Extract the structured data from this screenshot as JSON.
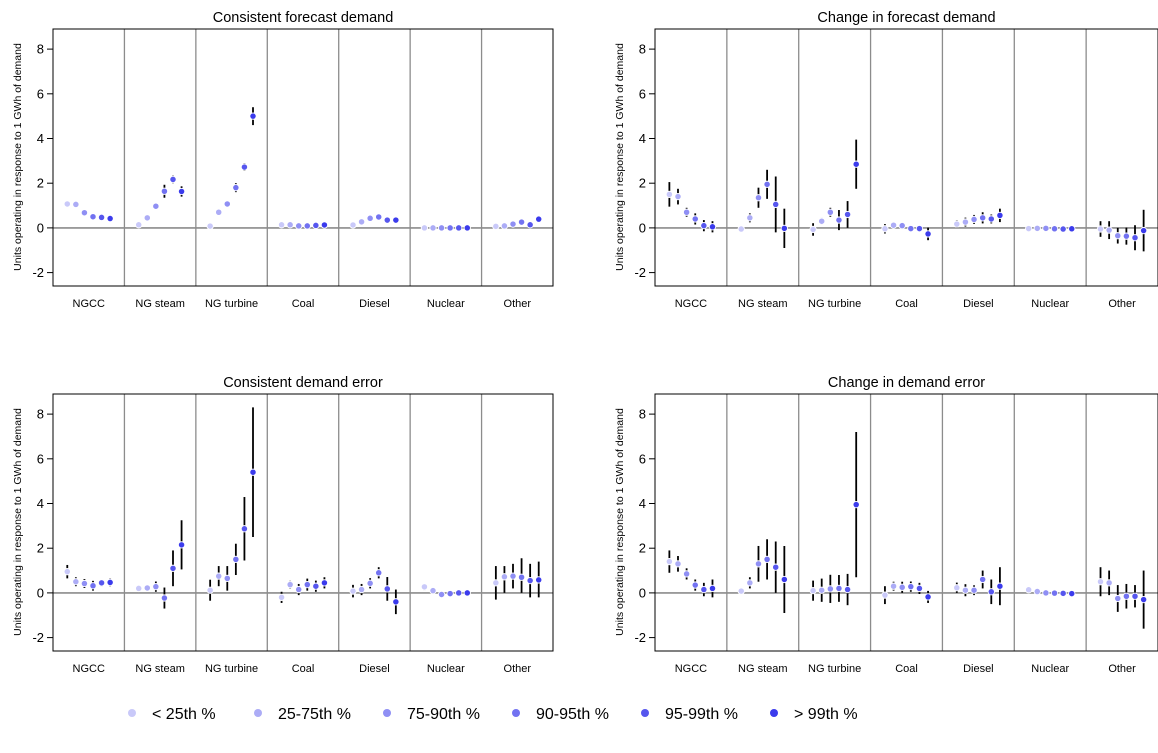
{
  "colors": {
    "percentiles": [
      "#c9c9f9",
      "#acacf6",
      "#8f8ff4",
      "#7272f1",
      "#5656ee",
      "#3b3bec"
    ],
    "dot_outline": "#ffffff",
    "errorbar": "#000000",
    "zero_line": "#8c8c8c",
    "divider": "#8c8c8c",
    "frame": "#000000"
  },
  "legend": {
    "position": "bottom",
    "items": [
      "< 25th %",
      "25-75th %",
      "75-90th %",
      "90-95th %",
      "95-99th %",
      "> 99th %"
    ]
  },
  "chart_data": [
    {
      "type": "scatter",
      "title": "Consistent forecast demand",
      "ylabel": "Units operating in response to 1 GWh of demand",
      "ylim": [
        -2.6,
        8.9
      ],
      "yticks": [
        "-2",
        "0",
        "2",
        "4",
        "6",
        "8"
      ],
      "categories": [
        "NGCC",
        "NG steam",
        "NG turbine",
        "Coal",
        "Diesel",
        "Nuclear",
        "Other"
      ],
      "grid": false,
      "series": [
        {
          "group": "NGCC",
          "values": [
            1.07,
            1.05,
            0.68,
            0.5,
            0.47,
            0.42
          ],
          "low": [
            0.99,
            0.97,
            0.6,
            0.42,
            0.39,
            0.35
          ],
          "high": [
            1.15,
            1.13,
            0.76,
            0.58,
            0.55,
            0.49
          ]
        },
        {
          "group": "NG steam",
          "values": [
            0.14,
            0.45,
            0.97,
            1.64,
            2.17,
            1.63
          ],
          "low": [
            0.1,
            0.35,
            0.85,
            1.35,
            2.0,
            1.4
          ],
          "high": [
            0.18,
            0.55,
            1.09,
            1.93,
            2.34,
            1.86
          ]
        },
        {
          "group": "NG turbine",
          "values": [
            0.08,
            0.7,
            1.07,
            1.8,
            2.72,
            5.0
          ],
          "low": [
            0.04,
            0.6,
            0.97,
            1.6,
            2.55,
            4.6
          ],
          "high": [
            0.12,
            0.8,
            1.17,
            2.0,
            2.89,
            5.4
          ]
        },
        {
          "group": "Coal",
          "values": [
            0.14,
            0.14,
            0.09,
            0.09,
            0.11,
            0.13
          ],
          "low": [
            0.1,
            0.1,
            0.05,
            0.05,
            0.07,
            0.09
          ],
          "high": [
            0.18,
            0.18,
            0.13,
            0.13,
            0.15,
            0.17
          ]
        },
        {
          "group": "Diesel",
          "values": [
            0.13,
            0.27,
            0.43,
            0.49,
            0.35,
            0.35
          ],
          "low": [
            0.09,
            0.2,
            0.35,
            0.41,
            0.28,
            0.28
          ],
          "high": [
            0.17,
            0.34,
            0.51,
            0.57,
            0.42,
            0.42
          ]
        },
        {
          "group": "Nuclear",
          "values": [
            0.0,
            0.0,
            0.0,
            0.0,
            0.0,
            0.0
          ],
          "low": [
            -0.03,
            -0.03,
            -0.03,
            -0.03,
            -0.03,
            -0.03
          ],
          "high": [
            0.03,
            0.03,
            0.03,
            0.03,
            0.03,
            0.03
          ]
        },
        {
          "group": "Other",
          "values": [
            0.07,
            0.09,
            0.17,
            0.26,
            0.14,
            0.39
          ],
          "low": [
            0.02,
            0.04,
            0.1,
            0.18,
            0.07,
            0.3
          ],
          "high": [
            0.12,
            0.14,
            0.24,
            0.34,
            0.21,
            0.48
          ]
        }
      ]
    },
    {
      "type": "scatter",
      "title": "Change in forecast demand",
      "ylabel": "Units operating in response to 1 GWh of demand",
      "ylim": [
        -2.6,
        8.9
      ],
      "yticks": [
        "-2",
        "0",
        "2",
        "4",
        "6",
        "8"
      ],
      "categories": [
        "NGCC",
        "NG steam",
        "NG turbine",
        "Coal",
        "Diesel",
        "Nuclear",
        "Other"
      ],
      "grid": false,
      "series": [
        {
          "group": "NGCC",
          "values": [
            1.5,
            1.4,
            0.7,
            0.4,
            0.1,
            0.05
          ],
          "low": [
            0.95,
            1.05,
            0.5,
            0.15,
            -0.15,
            -0.2
          ],
          "high": [
            2.05,
            1.75,
            0.9,
            0.65,
            0.35,
            0.3
          ]
        },
        {
          "group": "NG steam",
          "values": [
            -0.05,
            0.45,
            1.35,
            1.95,
            1.05,
            -0.02
          ],
          "low": [
            -0.12,
            0.25,
            0.9,
            1.3,
            -0.2,
            -0.9
          ],
          "high": [
            0.02,
            0.65,
            1.8,
            2.6,
            2.3,
            0.86
          ]
        },
        {
          "group": "NG turbine",
          "values": [
            -0.07,
            0.3,
            0.7,
            0.35,
            0.6,
            2.85
          ],
          "low": [
            -0.35,
            0.15,
            0.5,
            -0.1,
            0.0,
            1.75
          ],
          "high": [
            0.21,
            0.45,
            0.9,
            0.8,
            1.2,
            3.95
          ]
        },
        {
          "group": "Coal",
          "values": [
            -0.04,
            0.12,
            0.1,
            -0.03,
            -0.03,
            -0.27
          ],
          "low": [
            -0.25,
            0.04,
            0.02,
            -0.11,
            -0.11,
            -0.55
          ],
          "high": [
            0.17,
            0.2,
            0.18,
            0.05,
            0.05,
            0.01
          ]
        },
        {
          "group": "Diesel",
          "values": [
            0.17,
            0.26,
            0.38,
            0.45,
            0.4,
            0.56
          ],
          "low": [
            0.0,
            0.06,
            0.18,
            0.2,
            0.2,
            0.26
          ],
          "high": [
            0.34,
            0.46,
            0.58,
            0.7,
            0.6,
            0.86
          ]
        },
        {
          "group": "Nuclear",
          "values": [
            -0.03,
            -0.02,
            -0.02,
            -0.04,
            -0.05,
            -0.04
          ],
          "low": [
            -0.07,
            -0.06,
            -0.06,
            -0.08,
            -0.09,
            -0.08
          ],
          "high": [
            0.01,
            0.02,
            0.02,
            0.0,
            -0.01,
            0.0
          ]
        },
        {
          "group": "Other",
          "values": [
            -0.05,
            -0.1,
            -0.35,
            -0.37,
            -0.44,
            -0.12
          ],
          "low": [
            -0.4,
            -0.5,
            -0.7,
            -0.75,
            -1.0,
            -1.05
          ],
          "high": [
            0.3,
            0.3,
            0.0,
            0.01,
            0.12,
            0.81
          ]
        }
      ]
    },
    {
      "type": "scatter",
      "title": "Consistent demand error",
      "ylabel": "Units operating in response to 1 GWh of demand",
      "ylim": [
        -2.6,
        8.9
      ],
      "yticks": [
        "-2",
        "0",
        "2",
        "4",
        "6",
        "8"
      ],
      "categories": [
        "NGCC",
        "NG steam",
        "NG turbine",
        "Coal",
        "Diesel",
        "Nuclear",
        "Other"
      ],
      "grid": false,
      "series": [
        {
          "group": "NGCC",
          "values": [
            0.95,
            0.5,
            0.42,
            0.32,
            0.45,
            0.47
          ],
          "low": [
            0.65,
            0.3,
            0.22,
            0.1,
            0.3,
            0.3
          ],
          "high": [
            1.25,
            0.7,
            0.62,
            0.54,
            0.6,
            0.64
          ]
        },
        {
          "group": "NG steam",
          "values": [
            0.2,
            0.22,
            0.28,
            -0.23,
            1.1,
            2.15
          ],
          "low": [
            0.12,
            0.1,
            0.05,
            -0.7,
            0.3,
            1.05
          ],
          "high": [
            0.28,
            0.34,
            0.51,
            0.24,
            1.9,
            3.25
          ]
        },
        {
          "group": "NG turbine",
          "values": [
            0.12,
            0.75,
            0.65,
            1.5,
            2.87,
            5.4
          ],
          "low": [
            -0.35,
            0.3,
            0.1,
            0.8,
            1.45,
            2.5
          ],
          "high": [
            0.59,
            1.2,
            1.2,
            2.2,
            4.29,
            8.3
          ]
        },
        {
          "group": "Coal",
          "values": [
            -0.2,
            0.37,
            0.15,
            0.37,
            0.3,
            0.45
          ],
          "low": [
            -0.45,
            0.2,
            -0.1,
            0.1,
            0.05,
            0.2
          ],
          "high": [
            0.05,
            0.54,
            0.4,
            0.64,
            0.55,
            0.7
          ]
        },
        {
          "group": "Diesel",
          "values": [
            0.08,
            0.15,
            0.43,
            0.9,
            0.18,
            -0.4
          ],
          "low": [
            -0.2,
            -0.1,
            0.2,
            0.65,
            -0.35,
            -0.95
          ],
          "high": [
            0.36,
            0.4,
            0.66,
            1.15,
            0.71,
            0.15
          ]
        },
        {
          "group": "Nuclear",
          "values": [
            0.27,
            0.1,
            -0.07,
            -0.03,
            0.0,
            0.0
          ],
          "low": [
            0.12,
            0.0,
            -0.17,
            -0.1,
            -0.07,
            -0.07
          ],
          "high": [
            0.42,
            0.2,
            0.03,
            0.04,
            0.07,
            0.07
          ]
        },
        {
          "group": "Other",
          "values": [
            0.45,
            0.72,
            0.75,
            0.7,
            0.55,
            0.58
          ],
          "low": [
            -0.3,
            0.0,
            0.2,
            0.0,
            -0.2,
            -0.2
          ],
          "high": [
            1.2,
            1.2,
            1.3,
            1.55,
            1.3,
            1.4
          ]
        }
      ]
    },
    {
      "type": "scatter",
      "title": "Change in demand error",
      "ylabel": "Units operating in response to 1 GWh of demand",
      "ylim": [
        -2.6,
        8.9
      ],
      "yticks": [
        "-2",
        "0",
        "2",
        "4",
        "6",
        "8"
      ],
      "categories": [
        "NGCC",
        "NG steam",
        "NG turbine",
        "Coal",
        "Diesel",
        "Nuclear",
        "Other"
      ],
      "grid": false,
      "series": [
        {
          "group": "NGCC",
          "values": [
            1.4,
            1.3,
            0.85,
            0.35,
            0.15,
            0.2
          ],
          "low": [
            0.9,
            0.95,
            0.6,
            0.1,
            -0.15,
            -0.2
          ],
          "high": [
            1.9,
            1.65,
            1.1,
            0.6,
            0.45,
            0.6
          ]
        },
        {
          "group": "NG steam",
          "values": [
            0.08,
            0.45,
            1.3,
            1.5,
            1.15,
            0.6
          ],
          "low": [
            0.0,
            0.2,
            0.5,
            0.6,
            0.0,
            -0.9
          ],
          "high": [
            0.16,
            0.7,
            2.1,
            2.4,
            2.3,
            2.1
          ]
        },
        {
          "group": "NG turbine",
          "values": [
            0.1,
            0.12,
            0.18,
            0.2,
            0.15,
            3.95
          ],
          "low": [
            -0.35,
            -0.4,
            -0.45,
            -0.4,
            -0.55,
            0.7
          ],
          "high": [
            0.55,
            0.64,
            0.81,
            0.8,
            0.85,
            7.2
          ]
        },
        {
          "group": "Coal",
          "values": [
            -0.1,
            0.3,
            0.25,
            0.28,
            0.2,
            -0.18
          ],
          "low": [
            -0.5,
            0.1,
            0.0,
            0.05,
            -0.05,
            -0.45
          ],
          "high": [
            0.3,
            0.5,
            0.5,
            0.51,
            0.45,
            0.09
          ]
        },
        {
          "group": "Diesel",
          "values": [
            0.23,
            0.12,
            0.12,
            0.6,
            0.05,
            0.3
          ],
          "low": [
            0.0,
            -0.15,
            -0.1,
            0.2,
            -0.5,
            -0.55
          ],
          "high": [
            0.46,
            0.39,
            0.34,
            1.0,
            0.6,
            1.15
          ]
        },
        {
          "group": "Nuclear",
          "values": [
            0.14,
            0.06,
            0.0,
            -0.01,
            -0.02,
            -0.03
          ],
          "low": [
            0.06,
            0.0,
            -0.05,
            -0.06,
            -0.07,
            -0.08
          ],
          "high": [
            0.22,
            0.12,
            0.05,
            0.04,
            0.03,
            0.02
          ]
        },
        {
          "group": "Other",
          "values": [
            0.5,
            0.45,
            -0.25,
            -0.15,
            -0.15,
            -0.3
          ],
          "low": [
            -0.15,
            -0.1,
            -0.85,
            -0.7,
            -0.65,
            -1.6
          ],
          "high": [
            1.15,
            1.0,
            0.35,
            0.4,
            0.35,
            1.0
          ]
        }
      ]
    }
  ]
}
